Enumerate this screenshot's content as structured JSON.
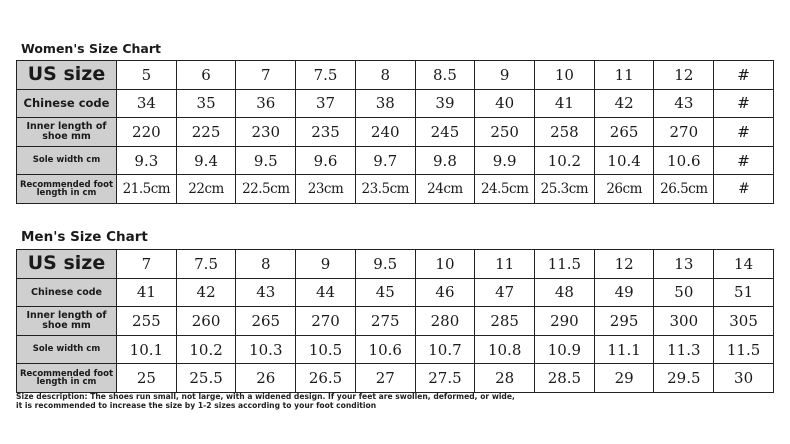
{
  "women": {
    "title": "Women's Size Chart",
    "rows": [
      {
        "label": "US size",
        "values": [
          "5",
          "6",
          "7",
          "7.5",
          "8",
          "8.5",
          "9",
          "10",
          "11",
          "12",
          "#"
        ]
      },
      {
        "label": "Chinese code",
        "values": [
          "34",
          "35",
          "36",
          "37",
          "38",
          "39",
          "40",
          "41",
          "42",
          "43",
          "#"
        ]
      },
      {
        "label": "Inner length of shoe mm",
        "values": [
          "220",
          "225",
          "230",
          "235",
          "240",
          "245",
          "250",
          "258",
          "265",
          "270",
          "#"
        ]
      },
      {
        "label": "Sole width cm",
        "values": [
          "9.3",
          "9.4",
          "9.5",
          "9.6",
          "9.7",
          "9.8",
          "9.9",
          "10.2",
          "10.4",
          "10.6",
          "#"
        ]
      },
      {
        "label": "Recommended foot length in cm",
        "values": [
          "21.5cm",
          "22cm",
          "22.5cm",
          "23cm",
          "23.5cm",
          "24cm",
          "24.5cm",
          "25.3cm",
          "26cm",
          "26.5cm",
          "#"
        ]
      }
    ]
  },
  "men": {
    "title": "Men's Size Chart",
    "rows": [
      {
        "label": "US size",
        "values": [
          "7",
          "7.5",
          "8",
          "9",
          "9.5",
          "10",
          "11",
          "11.5",
          "12",
          "13",
          "14"
        ]
      },
      {
        "label": "Chinese code",
        "values": [
          "41",
          "42",
          "43",
          "44",
          "45",
          "46",
          "47",
          "48",
          "49",
          "50",
          "51"
        ]
      },
      {
        "label": "Inner length of shoe mm",
        "values": [
          "255",
          "260",
          "265",
          "270",
          "275",
          "280",
          "285",
          "290",
          "295",
          "300",
          "305"
        ]
      },
      {
        "label": "Sole width cm",
        "values": [
          "10.1",
          "10.2",
          "10.3",
          "10.5",
          "10.6",
          "10.7",
          "10.8",
          "10.9",
          "11.1",
          "11.3",
          "11.5"
        ]
      },
      {
        "label": "Recommended foot length in cm",
        "values": [
          "25",
          "25.5",
          "26",
          "26.5",
          "27",
          "27.5",
          "28",
          "28.5",
          "29",
          "29.5",
          "30"
        ]
      }
    ]
  },
  "note": "Size description: The shoes run small, not large, with a widened design. If your feet are swollen, deformed, or wide, it is recommended to increase the size by 1-2 sizes according to your foot condition"
}
